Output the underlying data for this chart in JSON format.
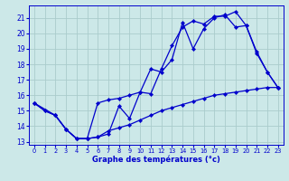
{
  "title": "Graphe des températures (°c)",
  "bg_color": "#cce8e8",
  "grid_color": "#aacccc",
  "line_color": "#0000cc",
  "x_ticks": [
    0,
    1,
    2,
    3,
    4,
    5,
    6,
    7,
    8,
    9,
    10,
    11,
    12,
    13,
    14,
    15,
    16,
    17,
    18,
    19,
    20,
    21,
    22,
    23
  ],
  "y_ticks": [
    13,
    14,
    15,
    16,
    17,
    18,
    19,
    20,
    21
  ],
  "ylim": [
    12.8,
    21.8
  ],
  "xlim": [
    -0.5,
    23.5
  ],
  "line1_x": [
    0,
    1,
    2,
    3,
    4,
    5,
    6,
    7,
    8,
    9,
    10,
    11,
    12,
    13,
    14,
    15,
    16,
    17,
    18,
    19,
    20,
    21,
    22,
    23
  ],
  "line1_y": [
    15.5,
    15.0,
    14.7,
    13.8,
    13.2,
    13.2,
    13.3,
    13.5,
    15.3,
    14.5,
    16.2,
    16.1,
    17.7,
    19.2,
    20.4,
    20.8,
    20.6,
    21.1,
    21.1,
    21.4,
    20.5,
    18.7,
    17.5,
    16.5
  ],
  "line2_x": [
    0,
    2,
    3,
    4,
    5,
    6,
    7,
    8,
    9,
    10,
    11,
    12,
    13,
    14,
    15,
    16,
    17,
    18,
    19,
    20,
    21,
    22,
    23
  ],
  "line2_y": [
    15.5,
    14.7,
    13.8,
    13.2,
    13.2,
    15.5,
    15.7,
    15.8,
    16.0,
    16.2,
    17.7,
    17.5,
    18.3,
    20.7,
    19.0,
    20.3,
    21.0,
    21.2,
    20.4,
    20.5,
    18.8,
    17.5,
    16.5
  ],
  "line3_x": [
    0,
    1,
    2,
    3,
    4,
    5,
    6,
    7,
    8,
    9,
    10,
    11,
    12,
    13,
    14,
    15,
    16,
    17,
    18,
    19,
    20,
    21,
    22,
    23
  ],
  "line3_y": [
    15.5,
    15.0,
    14.7,
    13.8,
    13.2,
    13.2,
    13.3,
    13.7,
    13.9,
    14.1,
    14.4,
    14.7,
    15.0,
    15.2,
    15.4,
    15.6,
    15.8,
    16.0,
    16.1,
    16.2,
    16.3,
    16.4,
    16.5,
    16.5
  ]
}
